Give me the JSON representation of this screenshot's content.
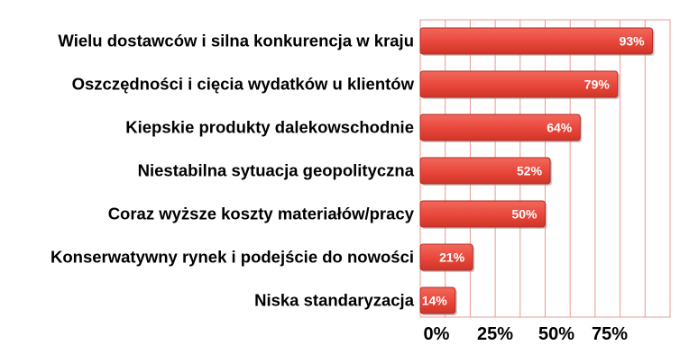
{
  "chart_data": {
    "type": "bar",
    "orientation": "horizontal",
    "categories": [
      "Wielu dostawców i silna konkurencja w kraju",
      "Oszczędności i cięcia wydatków u klientów",
      "Kiepskie produkty dalekowschodnie",
      "Niestabilna sytuacja geopolityczna",
      "Coraz wyższe koszty materiałów/pracy",
      "Konserwatywny rynek i podejście do nowości",
      "Niska standaryzacja"
    ],
    "values": [
      93,
      79,
      64,
      52,
      50,
      21,
      14
    ],
    "value_labels": [
      "93%",
      "79%",
      "64%",
      "52%",
      "50%",
      "21%",
      "14%"
    ],
    "x_ticks": [
      "0%",
      "25%",
      "50%",
      "75%"
    ],
    "xlim": [
      0,
      100
    ],
    "grid": "vertical",
    "bar_color": "#e8473a",
    "bar_edge_color": "#b52a22",
    "grid_color": "#e99a92"
  }
}
